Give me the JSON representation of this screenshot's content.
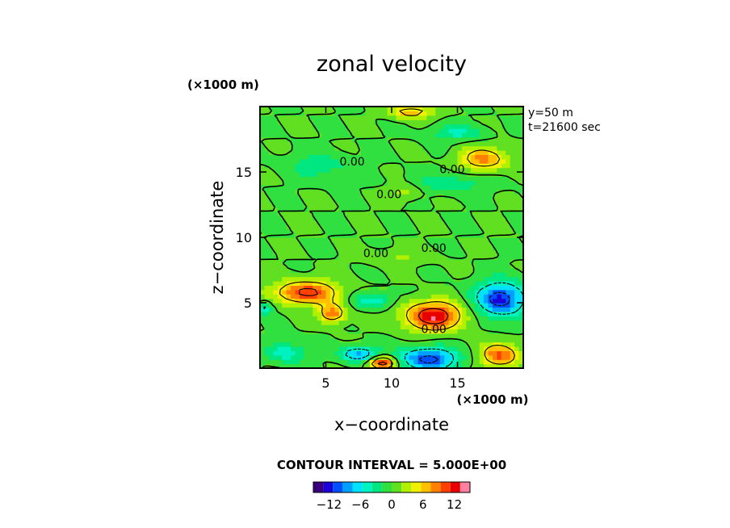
{
  "chart_data": {
    "type": "heatmap",
    "title": "zonal velocity",
    "xlabel": "x−coordinate",
    "ylabel": "z−coordinate",
    "x_unit": "(×1000 m)",
    "y_unit": "(×1000 m)",
    "xlim": [
      0,
      20
    ],
    "ylim": [
      0,
      20
    ],
    "x_ticks": [
      "5",
      "10",
      "15"
    ],
    "y_ticks": [
      "5",
      "10",
      "15"
    ],
    "annotations": [
      "y=50 m",
      "t=21600 sec"
    ],
    "contour_interval_text": "CONTOUR INTERVAL = 5.000E+00",
    "contour_label": "0.00",
    "colorbar_ticks": [
      "−12",
      "−6",
      "0",
      "6",
      "12"
    ],
    "colorbar_range": [
      -15,
      15
    ],
    "colorbar_colors": [
      "#3a007a",
      "#1b00d8",
      "#0050ff",
      "#00a0ff",
      "#00e0ff",
      "#00f2c0",
      "#00e680",
      "#30e040",
      "#60e020",
      "#b0f000",
      "#f0f000",
      "#ffc000",
      "#ff8000",
      "#ff4000",
      "#e80000",
      "#ff80a0"
    ],
    "blobs": [
      {
        "x": 3.5,
        "z": 5.8,
        "rx": 2.4,
        "rz": 0.9,
        "value": 11
      },
      {
        "x": 5.5,
        "z": 4.2,
        "rx": 1.0,
        "rz": 0.7,
        "value": 9
      },
      {
        "x": 13.2,
        "z": 4.0,
        "rx": 2.2,
        "rz": 1.1,
        "value": 13
      },
      {
        "x": 17.0,
        "z": 16.0,
        "rx": 1.8,
        "rz": 0.9,
        "value": 8
      },
      {
        "x": 11.5,
        "z": 19.6,
        "rx": 1.6,
        "rz": 0.5,
        "value": 7
      },
      {
        "x": 9.3,
        "z": 0.4,
        "rx": 1.0,
        "rz": 0.5,
        "value": 13
      },
      {
        "x": 18.2,
        "z": 1.0,
        "rx": 1.4,
        "rz": 0.9,
        "value": 10
      },
      {
        "x": 11.0,
        "z": 13.5,
        "rx": 1.2,
        "rz": 0.6,
        "value": 3
      },
      {
        "x": 18.3,
        "z": 5.3,
        "rx": 1.9,
        "rz": 1.3,
        "value": -12
      },
      {
        "x": 12.8,
        "z": 0.7,
        "rx": 2.2,
        "rz": 0.9,
        "value": -11
      },
      {
        "x": 7.5,
        "z": 1.1,
        "rx": 1.5,
        "rz": 0.6,
        "value": -8
      },
      {
        "x": 2.0,
        "z": 1.2,
        "rx": 1.5,
        "rz": 0.8,
        "value": -5
      },
      {
        "x": 8.6,
        "z": 5.2,
        "rx": 1.5,
        "rz": 0.6,
        "value": -5
      },
      {
        "x": 15.0,
        "z": 18.0,
        "rx": 2.0,
        "rz": 0.6,
        "value": -4
      },
      {
        "x": 14.5,
        "z": 14.2,
        "rx": 3.0,
        "rz": 0.8,
        "value": -3
      },
      {
        "x": 4.5,
        "z": 15.5,
        "rx": 2.5,
        "rz": 1.0,
        "value": -3
      },
      {
        "x": 0.4,
        "z": 4.6,
        "rx": 0.5,
        "rz": 0.5,
        "value": -6
      },
      {
        "x": 10.5,
        "z": 8.5,
        "rx": 2.5,
        "rz": 0.6,
        "value": 2
      }
    ]
  }
}
